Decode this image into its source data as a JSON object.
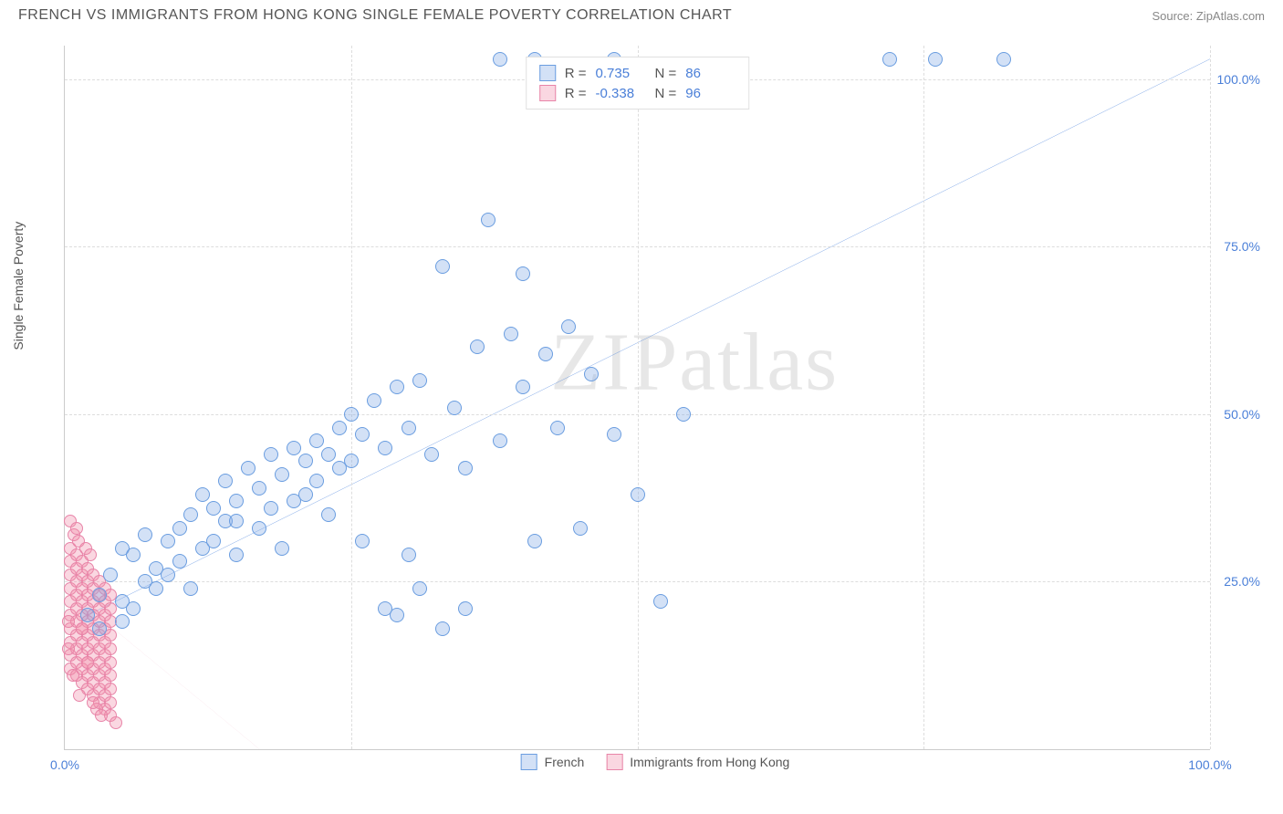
{
  "header": {
    "title": "FRENCH VS IMMIGRANTS FROM HONG KONG SINGLE FEMALE POVERTY CORRELATION CHART",
    "source": "Source: ZipAtlas.com"
  },
  "watermark": "ZIPatlas",
  "chart": {
    "type": "scatter",
    "y_axis_label": "Single Female Poverty",
    "xlim": [
      0,
      100
    ],
    "ylim": [
      0,
      105
    ],
    "x_ticks": [
      {
        "v": 0,
        "l": "0.0%"
      },
      {
        "v": 100,
        "l": "100.0%"
      }
    ],
    "y_ticks": [
      {
        "v": 25,
        "l": "25.0%"
      },
      {
        "v": 50,
        "l": "50.0%"
      },
      {
        "v": 75,
        "l": "75.0%"
      },
      {
        "v": 100,
        "l": "100.0%"
      }
    ],
    "x_gridlines": [
      25,
      50,
      75,
      100
    ],
    "y_gridlines": [
      25,
      50,
      75,
      100
    ],
    "background_color": "#ffffff",
    "grid_color": "#dddddd",
    "axis_color": "#cccccc",
    "tick_color": "#4a7fd8",
    "series": [
      {
        "name": "French",
        "fill": "rgba(130,170,230,0.35)",
        "stroke": "#6a9de0",
        "marker_radius": 8,
        "trend": {
          "x1": 2,
          "y1": 20,
          "x2": 100,
          "y2": 103,
          "color": "#2e6fd6",
          "width": 2,
          "dash": "none"
        },
        "stats": {
          "R": "0.735",
          "N": "86"
        },
        "points": [
          [
            2,
            20
          ],
          [
            3,
            23
          ],
          [
            4,
            26
          ],
          [
            5,
            22
          ],
          [
            5,
            30
          ],
          [
            6,
            29
          ],
          [
            7,
            32
          ],
          [
            7,
            25
          ],
          [
            8,
            27
          ],
          [
            9,
            31
          ],
          [
            10,
            28
          ],
          [
            10,
            33
          ],
          [
            11,
            35
          ],
          [
            12,
            30
          ],
          [
            12,
            38
          ],
          [
            13,
            36
          ],
          [
            14,
            34
          ],
          [
            14,
            40
          ],
          [
            15,
            37
          ],
          [
            15,
            29
          ],
          [
            16,
            42
          ],
          [
            17,
            39
          ],
          [
            17,
            33
          ],
          [
            18,
            44
          ],
          [
            18,
            36
          ],
          [
            19,
            41
          ],
          [
            20,
            45
          ],
          [
            20,
            37
          ],
          [
            21,
            43
          ],
          [
            22,
            46
          ],
          [
            22,
            40
          ],
          [
            23,
            44
          ],
          [
            24,
            48
          ],
          [
            24,
            42
          ],
          [
            25,
            50
          ],
          [
            25,
            43
          ],
          [
            26,
            47
          ],
          [
            27,
            52
          ],
          [
            28,
            21
          ],
          [
            28,
            45
          ],
          [
            29,
            54
          ],
          [
            30,
            48
          ],
          [
            30,
            29
          ],
          [
            31,
            55
          ],
          [
            32,
            44
          ],
          [
            33,
            72
          ],
          [
            34,
            51
          ],
          [
            35,
            42
          ],
          [
            36,
            60
          ],
          [
            37,
            79
          ],
          [
            38,
            46
          ],
          [
            38,
            103
          ],
          [
            39,
            62
          ],
          [
            40,
            54
          ],
          [
            40,
            71
          ],
          [
            41,
            103
          ],
          [
            42,
            59
          ],
          [
            43,
            48
          ],
          [
            44,
            63
          ],
          [
            45,
            33
          ],
          [
            46,
            56
          ],
          [
            48,
            47
          ],
          [
            48,
            103
          ],
          [
            50,
            38
          ],
          [
            52,
            22
          ],
          [
            54,
            50
          ],
          [
            72,
            103
          ],
          [
            76,
            103
          ],
          [
            82,
            103
          ],
          [
            3,
            18
          ],
          [
            5,
            19
          ],
          [
            6,
            21
          ],
          [
            8,
            24
          ],
          [
            9,
            26
          ],
          [
            11,
            24
          ],
          [
            13,
            31
          ],
          [
            15,
            34
          ],
          [
            19,
            30
          ],
          [
            21,
            38
          ],
          [
            23,
            35
          ],
          [
            26,
            31
          ],
          [
            29,
            20
          ],
          [
            31,
            24
          ],
          [
            33,
            18
          ],
          [
            35,
            21
          ],
          [
            41,
            31
          ]
        ]
      },
      {
        "name": "Immigrants from Hong Kong",
        "fill": "rgba(240,140,170,0.35)",
        "stroke": "#e884a8",
        "marker_radius": 7,
        "trend": {
          "x1": 0,
          "y1": 24,
          "x2": 17,
          "y2": 0,
          "color": "#e884a8",
          "width": 1,
          "dash": "5,4"
        },
        "stats": {
          "R": "-0.338",
          "N": "96"
        },
        "points": [
          [
            0.5,
            30
          ],
          [
            0.5,
            28
          ],
          [
            0.5,
            26
          ],
          [
            0.5,
            24
          ],
          [
            0.5,
            22
          ],
          [
            0.5,
            20
          ],
          [
            0.5,
            18
          ],
          [
            0.5,
            16
          ],
          [
            0.5,
            14
          ],
          [
            0.5,
            12
          ],
          [
            1,
            29
          ],
          [
            1,
            27
          ],
          [
            1,
            25
          ],
          [
            1,
            23
          ],
          [
            1,
            21
          ],
          [
            1,
            19
          ],
          [
            1,
            17
          ],
          [
            1,
            15
          ],
          [
            1,
            13
          ],
          [
            1,
            11
          ],
          [
            1.5,
            28
          ],
          [
            1.5,
            26
          ],
          [
            1.5,
            24
          ],
          [
            1.5,
            22
          ],
          [
            1.5,
            20
          ],
          [
            1.5,
            18
          ],
          [
            1.5,
            16
          ],
          [
            1.5,
            14
          ],
          [
            1.5,
            12
          ],
          [
            1.5,
            10
          ],
          [
            2,
            27
          ],
          [
            2,
            25
          ],
          [
            2,
            23
          ],
          [
            2,
            21
          ],
          [
            2,
            19
          ],
          [
            2,
            17
          ],
          [
            2,
            15
          ],
          [
            2,
            13
          ],
          [
            2,
            11
          ],
          [
            2,
            9
          ],
          [
            2.5,
            26
          ],
          [
            2.5,
            24
          ],
          [
            2.5,
            22
          ],
          [
            2.5,
            20
          ],
          [
            2.5,
            18
          ],
          [
            2.5,
            16
          ],
          [
            2.5,
            14
          ],
          [
            2.5,
            12
          ],
          [
            2.5,
            10
          ],
          [
            2.5,
            8
          ],
          [
            3,
            25
          ],
          [
            3,
            23
          ],
          [
            3,
            21
          ],
          [
            3,
            19
          ],
          [
            3,
            17
          ],
          [
            3,
            15
          ],
          [
            3,
            13
          ],
          [
            3,
            11
          ],
          [
            3,
            9
          ],
          [
            3,
            7
          ],
          [
            3.5,
            24
          ],
          [
            3.5,
            22
          ],
          [
            3.5,
            20
          ],
          [
            3.5,
            18
          ],
          [
            3.5,
            16
          ],
          [
            3.5,
            14
          ],
          [
            3.5,
            12
          ],
          [
            3.5,
            10
          ],
          [
            3.5,
            8
          ],
          [
            3.5,
            6
          ],
          [
            4,
            23
          ],
          [
            4,
            21
          ],
          [
            4,
            19
          ],
          [
            4,
            17
          ],
          [
            4,
            15
          ],
          [
            4,
            13
          ],
          [
            4,
            11
          ],
          [
            4,
            9
          ],
          [
            4,
            7
          ],
          [
            4,
            5
          ],
          [
            0.8,
            32
          ],
          [
            1.2,
            31
          ],
          [
            1.8,
            30
          ],
          [
            2.2,
            29
          ],
          [
            0.3,
            19
          ],
          [
            0.3,
            15
          ],
          [
            0.7,
            11
          ],
          [
            1.3,
            8
          ],
          [
            2.8,
            6
          ],
          [
            3.2,
            5
          ],
          [
            0.5,
            34
          ],
          [
            1,
            33
          ],
          [
            1.5,
            18
          ],
          [
            2,
            13
          ],
          [
            2.5,
            7
          ],
          [
            4.5,
            4
          ]
        ]
      }
    ],
    "stats_legend_labels": {
      "R": "R =",
      "N": "N ="
    },
    "bottom_legend": [
      "French",
      "Immigrants from Hong Kong"
    ]
  }
}
